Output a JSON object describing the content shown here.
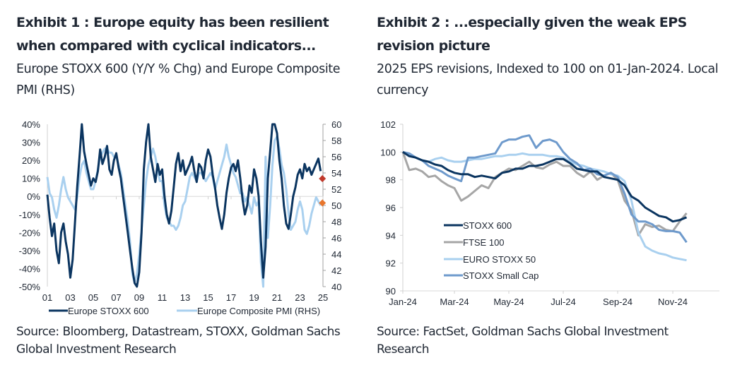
{
  "chart_data": [
    {
      "type": "line",
      "title": "Exhibit 1 : Europe equity has been resilient when compared with cyclical indicators...",
      "subtitle": "Europe STOXX 600 (Y/Y % Chg) and Europe Composite PMI (RHS)",
      "source": "Source: Bloomberg, Datastream, STOXX, Goldman Sachs Global Investment Research",
      "xlabel": "",
      "ylabel_left": "",
      "ylabel_right": "",
      "x_range": [
        2001,
        2025
      ],
      "x_ticks": [
        "01",
        "03",
        "05",
        "07",
        "09",
        "11",
        "13",
        "15",
        "17",
        "19",
        "21",
        "23",
        "25"
      ],
      "x_tick_values": [
        2001,
        2003,
        2005,
        2007,
        2009,
        2011,
        2013,
        2015,
        2017,
        2019,
        2021,
        2023,
        2025
      ],
      "y_left_range": [
        -50,
        40
      ],
      "y_left_ticks": [
        "-50%",
        "-40%",
        "-30%",
        "-20%",
        "-10%",
        "0%",
        "10%",
        "20%",
        "30%",
        "40%"
      ],
      "y_left_tick_values": [
        -50,
        -40,
        -30,
        -20,
        -10,
        0,
        10,
        20,
        30,
        40
      ],
      "y_right_range": [
        40,
        60
      ],
      "y_right_ticks": [
        "40",
        "42",
        "44",
        "46",
        "48",
        "50",
        "52",
        "54",
        "56",
        "58",
        "60"
      ],
      "y_right_tick_values": [
        40,
        42,
        44,
        46,
        48,
        50,
        52,
        54,
        56,
        58,
        60
      ],
      "grid": false,
      "zero_line": true,
      "legend_position": "bottom",
      "series": [
        {
          "name": "Europe STOXX 600",
          "axis": "left",
          "color": "#0b3560",
          "x": [
            2001.0,
            2001.2,
            2001.4,
            2001.6,
            2001.8,
            2002.0,
            2002.2,
            2002.4,
            2002.6,
            2002.8,
            2003.0,
            2003.2,
            2003.4,
            2003.6,
            2003.8,
            2004.0,
            2004.2,
            2004.4,
            2004.6,
            2004.8,
            2005.0,
            2005.2,
            2005.4,
            2005.6,
            2005.8,
            2006.0,
            2006.2,
            2006.4,
            2006.6,
            2006.8,
            2007.0,
            2007.2,
            2007.4,
            2007.6,
            2007.8,
            2008.0,
            2008.2,
            2008.4,
            2008.6,
            2008.8,
            2009.0,
            2009.2,
            2009.4,
            2009.6,
            2009.8,
            2010.0,
            2010.2,
            2010.4,
            2010.6,
            2010.8,
            2011.0,
            2011.2,
            2011.4,
            2011.6,
            2011.8,
            2012.0,
            2012.2,
            2012.4,
            2012.6,
            2012.8,
            2013.0,
            2013.2,
            2013.4,
            2013.6,
            2013.8,
            2014.0,
            2014.2,
            2014.4,
            2014.6,
            2014.8,
            2015.0,
            2015.2,
            2015.4,
            2015.6,
            2015.8,
            2016.0,
            2016.2,
            2016.4,
            2016.6,
            2016.8,
            2017.0,
            2017.2,
            2017.4,
            2017.6,
            2017.8,
            2018.0,
            2018.2,
            2018.4,
            2018.6,
            2018.8,
            2019.0,
            2019.2,
            2019.4,
            2019.6,
            2019.8,
            2020.0,
            2020.2,
            2020.4,
            2020.6,
            2020.8,
            2021.0,
            2021.2,
            2021.4,
            2021.6,
            2021.8,
            2022.0,
            2022.2,
            2022.4,
            2022.6,
            2022.8,
            2023.0,
            2023.2,
            2023.4,
            2023.6,
            2023.8,
            2024.0,
            2024.2,
            2024.4,
            2024.6,
            2024.8
          ],
          "values": [
            1,
            -12,
            -22,
            -15,
            -30,
            -37,
            -20,
            -15,
            -25,
            -32,
            -45,
            -35,
            -15,
            5,
            22,
            40,
            25,
            18,
            12,
            6,
            10,
            8,
            14,
            26,
            18,
            22,
            28,
            15,
            12,
            20,
            24,
            16,
            10,
            0,
            -10,
            -20,
            -30,
            -40,
            -48,
            -50,
            -42,
            -20,
            15,
            30,
            40,
            22,
            15,
            8,
            18,
            12,
            15,
            0,
            -10,
            -15,
            -8,
            5,
            18,
            24,
            14,
            20,
            12,
            15,
            18,
            22,
            14,
            8,
            18,
            16,
            10,
            20,
            26,
            22,
            12,
            5,
            -5,
            -12,
            -18,
            -10,
            2,
            10,
            16,
            18,
            14,
            20,
            10,
            -2,
            -10,
            -5,
            6,
            2,
            15,
            10,
            0,
            -25,
            -45,
            -28,
            10,
            25,
            40,
            48,
            35,
            20,
            10,
            -5,
            -15,
            -18,
            -10,
            0,
            5,
            12,
            15,
            10,
            18,
            14,
            16,
            12,
            15,
            18,
            21,
            14
          ]
        },
        {
          "name": "Europe Composite PMI (RHS)",
          "axis": "right",
          "color": "#a9d0ef",
          "x": [
            2001.0,
            2001.2,
            2001.4,
            2001.6,
            2001.8,
            2002.0,
            2002.2,
            2002.4,
            2002.6,
            2002.8,
            2003.0,
            2003.2,
            2003.4,
            2003.6,
            2003.8,
            2004.0,
            2004.2,
            2004.4,
            2004.6,
            2004.8,
            2005.0,
            2005.2,
            2005.4,
            2005.6,
            2005.8,
            2006.0,
            2006.2,
            2006.4,
            2006.6,
            2006.8,
            2007.0,
            2007.2,
            2007.4,
            2007.6,
            2007.8,
            2008.0,
            2008.2,
            2008.4,
            2008.6,
            2008.8,
            2009.0,
            2009.2,
            2009.4,
            2009.6,
            2009.8,
            2010.0,
            2010.2,
            2010.4,
            2010.6,
            2010.8,
            2011.0,
            2011.2,
            2011.4,
            2011.6,
            2011.8,
            2012.0,
            2012.2,
            2012.4,
            2012.6,
            2012.8,
            2013.0,
            2013.2,
            2013.4,
            2013.6,
            2013.8,
            2014.0,
            2014.2,
            2014.4,
            2014.6,
            2014.8,
            2015.0,
            2015.2,
            2015.4,
            2015.6,
            2015.8,
            2016.0,
            2016.2,
            2016.4,
            2016.6,
            2016.8,
            2017.0,
            2017.2,
            2017.4,
            2017.6,
            2017.8,
            2018.0,
            2018.2,
            2018.4,
            2018.6,
            2018.8,
            2019.0,
            2019.2,
            2019.4,
            2019.6,
            2019.8,
            2020.0,
            2020.2,
            2020.4,
            2020.6,
            2020.8,
            2021.0,
            2021.2,
            2021.4,
            2021.6,
            2021.8,
            2022.0,
            2022.2,
            2022.4,
            2022.6,
            2022.8,
            2023.0,
            2023.2,
            2023.4,
            2023.6,
            2023.8,
            2024.0,
            2024.2,
            2024.4,
            2024.6,
            2024.8
          ],
          "values": [
            53.5,
            51.5,
            51,
            49.5,
            48.5,
            50,
            52,
            53.5,
            52,
            51,
            50.5,
            50,
            49.5,
            51,
            53.5,
            55,
            55.5,
            54,
            53,
            52,
            52,
            53,
            54.5,
            56,
            56.5,
            57,
            57,
            56.5,
            56.5,
            56,
            56,
            55,
            54,
            52,
            50,
            48,
            45.5,
            41.5,
            40.5,
            41.5,
            44,
            47,
            50,
            53,
            55,
            56,
            57,
            56,
            54.5,
            53,
            53,
            50,
            48.5,
            48,
            47.5,
            47.5,
            47,
            47.5,
            48.5,
            50,
            50.5,
            52,
            53.5,
            54,
            53.5,
            53,
            54,
            54,
            53.5,
            53,
            53.5,
            54,
            53.5,
            52,
            53,
            54,
            55,
            56,
            57.5,
            56,
            55,
            54,
            53.5,
            52.5,
            51.5,
            51.5,
            50.5,
            51,
            50,
            49,
            51,
            50,
            50.5,
            43,
            40,
            56,
            46,
            50,
            55,
            58,
            58.5,
            57,
            55,
            54,
            52,
            49,
            47,
            47.5,
            48,
            49.5,
            50.5,
            49.5,
            47,
            46.5,
            47.5,
            49,
            50,
            51,
            50.5,
            50
          ]
        }
      ],
      "markers": [
        {
          "name": "STOXX 600 latest",
          "axis": "right",
          "x": 2024.95,
          "value": 53.3,
          "shape": "diamond",
          "color": "#c0392b"
        },
        {
          "name": "PMI latest",
          "axis": "right",
          "x": 2024.95,
          "value": 50.3,
          "shape": "diamond",
          "color": "#e8762d"
        }
      ]
    },
    {
      "type": "line",
      "title": "Exhibit 2 : ...especially given the weak EPS revision picture",
      "subtitle": "2025 EPS revisions, Indexed to 100 on 01-Jan-2024. Local currency",
      "source": "Source: FactSet, Goldman Sachs Global Investment Research",
      "xlabel": "",
      "ylabel": "",
      "x_unit": "months since 01-Jan-2024",
      "x_range": [
        0,
        11.5
      ],
      "x_ticks": [
        "Jan-24",
        "Mar-24",
        "May-24",
        "Jul-24",
        "Sep-24",
        "Nov-24"
      ],
      "x_tick_values": [
        0,
        2,
        4,
        6,
        8,
        10
      ],
      "ylim": [
        90,
        102
      ],
      "y_ticks": [
        "90",
        "92",
        "94",
        "96",
        "98",
        "100",
        "102"
      ],
      "y_tick_values": [
        90,
        92,
        94,
        96,
        98,
        100,
        102
      ],
      "grid": false,
      "legend_position": "bottom-left inside",
      "series": [
        {
          "name": "STOXX 600",
          "color": "#0b3560",
          "x": [
            0,
            0.25,
            0.5,
            0.75,
            1,
            1.25,
            1.5,
            1.75,
            2,
            2.25,
            2.5,
            2.75,
            3,
            3.25,
            3.5,
            3.75,
            4,
            4.25,
            4.5,
            4.75,
            5,
            5.25,
            5.5,
            5.75,
            6,
            6.25,
            6.5,
            6.75,
            7,
            7.25,
            7.5,
            7.75,
            8,
            8.25,
            8.5,
            8.75,
            9,
            9.25,
            9.5,
            9.75,
            10,
            10.25,
            10.5
          ],
          "values": [
            100,
            99.7,
            99.6,
            99.4,
            99.3,
            99.1,
            99.0,
            98.7,
            98.5,
            98.4,
            98.4,
            98.2,
            98.3,
            98.2,
            98.1,
            98.5,
            98.6,
            98.8,
            98.8,
            99.0,
            99.0,
            99.1,
            99.3,
            99.5,
            99.5,
            99.2,
            98.8,
            98.7,
            98.6,
            98.6,
            98.2,
            98.1,
            98.0,
            97.6,
            96.8,
            96.5,
            96.0,
            95.7,
            95.4,
            95.3,
            95.0,
            95.1,
            95.3
          ]
        },
        {
          "name": "FTSE 100",
          "color": "#a6a6a6",
          "x": [
            0,
            0.25,
            0.5,
            0.75,
            1,
            1.25,
            1.5,
            1.75,
            2,
            2.25,
            2.5,
            2.75,
            3,
            3.25,
            3.5,
            3.75,
            4,
            4.25,
            4.5,
            4.75,
            5,
            5.25,
            5.5,
            5.75,
            6,
            6.25,
            6.5,
            6.75,
            7,
            7.25,
            7.5,
            7.75,
            8,
            8.25,
            8.5,
            8.75,
            9,
            9.25,
            9.5,
            9.75,
            10,
            10.25,
            10.5
          ],
          "values": [
            100,
            98.7,
            98.8,
            98.6,
            98.2,
            98.3,
            97.9,
            97.6,
            97.4,
            96.5,
            96.8,
            97.2,
            97.6,
            97.4,
            98.2,
            98.5,
            98.8,
            98.7,
            99.0,
            99.3,
            98.9,
            98.8,
            99.1,
            99.3,
            99.0,
            99.0,
            98.5,
            98.2,
            98.6,
            98.0,
            98.3,
            98.5,
            98.0,
            96.5,
            95.8,
            94.0,
            94.8,
            94.6,
            94.7,
            94.4,
            94.3,
            95.0,
            95.6
          ]
        },
        {
          "name": "EURO STOXX 50",
          "color": "#a9d0ef",
          "x": [
            0,
            0.25,
            0.5,
            0.75,
            1,
            1.25,
            1.5,
            1.75,
            2,
            2.25,
            2.5,
            2.75,
            3,
            3.25,
            3.5,
            3.75,
            4,
            4.25,
            4.5,
            4.75,
            5,
            5.25,
            5.5,
            5.75,
            6,
            6.25,
            6.5,
            6.75,
            7,
            7.25,
            7.5,
            7.75,
            8,
            8.25,
            8.5,
            8.75,
            9,
            9.25,
            9.5,
            9.75,
            10,
            10.25,
            10.5
          ],
          "values": [
            100,
            99.8,
            99.6,
            99.4,
            99.3,
            99.5,
            99.6,
            99.4,
            99.3,
            99.3,
            99.4,
            99.5,
            99.5,
            99.6,
            99.7,
            99.7,
            99.8,
            99.8,
            99.9,
            99.8,
            99.8,
            99.8,
            99.7,
            99.7,
            99.6,
            99.3,
            99.1,
            99.0,
            98.8,
            98.7,
            98.6,
            98.4,
            98.3,
            97.9,
            96.5,
            94.2,
            93.2,
            92.9,
            92.7,
            92.6,
            92.4,
            92.3,
            92.2
          ]
        },
        {
          "name": "STOXX Small Cap",
          "color": "#6e9acc",
          "x": [
            0,
            0.25,
            0.5,
            0.75,
            1,
            1.25,
            1.5,
            1.75,
            2,
            2.25,
            2.5,
            2.75,
            3,
            3.25,
            3.5,
            3.75,
            4,
            4.25,
            4.5,
            4.75,
            5,
            5.25,
            5.5,
            5.75,
            6,
            6.25,
            6.5,
            6.75,
            7,
            7.25,
            7.5,
            7.75,
            8,
            8.25,
            8.5,
            8.75,
            9,
            9.25,
            9.5,
            9.75,
            10,
            10.25,
            10.5
          ],
          "values": [
            100,
            99.9,
            99.6,
            99.4,
            99.0,
            98.8,
            98.6,
            98.3,
            98.1,
            97.9,
            99.6,
            99.6,
            99.7,
            99.8,
            99.9,
            100.7,
            100.9,
            100.9,
            101.1,
            101.2,
            100.3,
            100.8,
            100.9,
            100.7,
            100.0,
            99.5,
            99.2,
            98.7,
            98.8,
            98.4,
            98.3,
            98.5,
            98.2,
            97.0,
            95.5,
            95.0,
            95.0,
            94.8,
            94.4,
            94.3,
            94.3,
            94.2,
            93.5
          ]
        }
      ]
    }
  ]
}
